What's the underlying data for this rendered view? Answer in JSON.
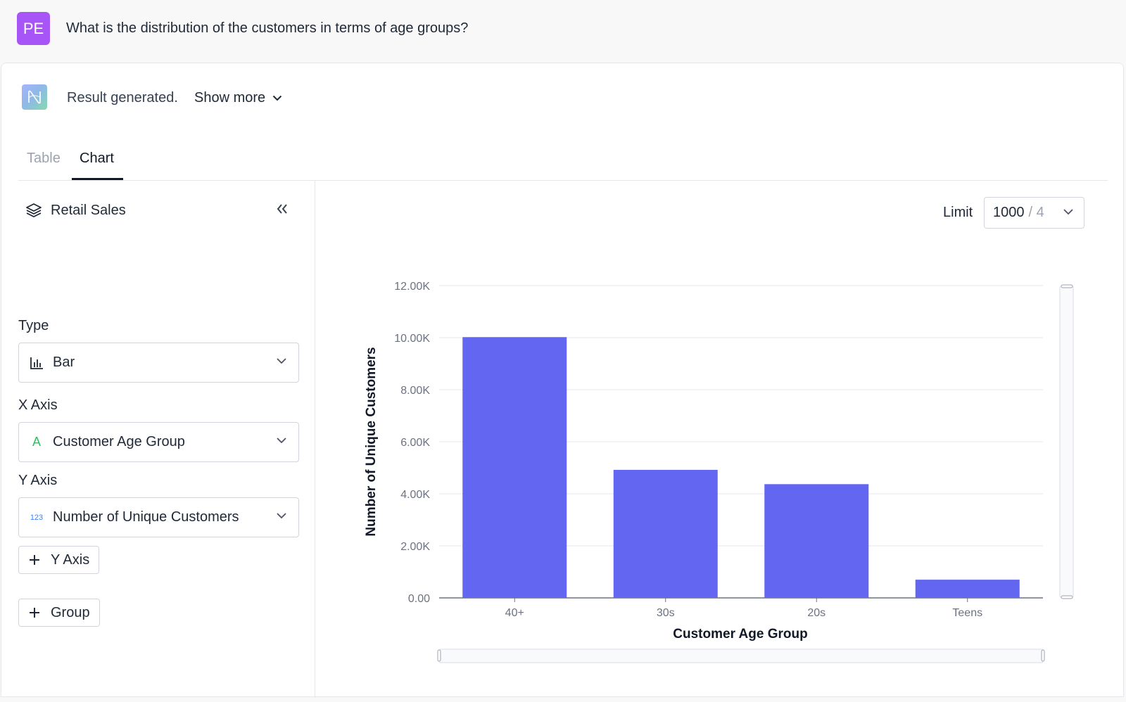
{
  "question": {
    "avatar_initials": "PE",
    "text": "What is the distribution of the customers in terms of age groups?"
  },
  "result": {
    "status_text": "Result generated.",
    "show_more_label": "Show more"
  },
  "tabs": [
    {
      "label": "Table",
      "active": false
    },
    {
      "label": "Chart",
      "active": true
    }
  ],
  "config": {
    "datasource": "Retail Sales",
    "type_label": "Type",
    "type_value": "Bar",
    "x_axis_label": "X Axis",
    "x_axis_value": "Customer Age Group",
    "x_axis_icon_text": "A",
    "y_axis_label": "Y Axis",
    "y_axis_value": "Number of Unique Customers",
    "y_axis_icon_text": "123",
    "add_y_axis_label": "Y Axis",
    "add_group_label": "Group"
  },
  "limit": {
    "label": "Limit",
    "value": "1000",
    "total": "/ 4"
  },
  "colors": {
    "accent": "#6366f1",
    "avatar": "#a855f7",
    "x_axis_icon": "#22c55e",
    "y_axis_icon": "#3b82f6"
  },
  "chart_data": {
    "type": "bar",
    "categories": [
      "40+",
      "30s",
      "20s",
      "Teens"
    ],
    "series": [
      {
        "values": [
          10020,
          4920,
          4370,
          700
        ]
      }
    ],
    "xlabel": "Customer Age Group",
    "ylabel": "Number of Unique Customers",
    "ylim": [
      0,
      12000
    ],
    "yticks": [
      0,
      2000,
      4000,
      6000,
      8000,
      10000,
      12000
    ],
    "ytick_labels": [
      "0.00",
      "2.00K",
      "4.00K",
      "6.00K",
      "8.00K",
      "10.00K",
      "12.00K"
    ],
    "grid": true,
    "legend": "none"
  }
}
